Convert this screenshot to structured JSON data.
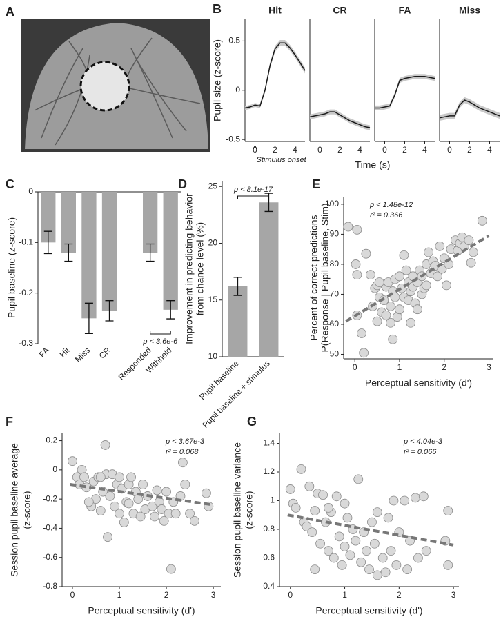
{
  "chart_data": [
    {
      "type": "image",
      "panel": "A"
    },
    {
      "type": "line",
      "panel": "B",
      "title": "Hit",
      "ylabel": "Pupil size (z-score)",
      "xlabel": "Time (s)",
      "annotation": "Stimulus onset",
      "x": [
        -1,
        -0.5,
        0,
        0.5,
        1,
        1.5,
        2,
        2.5,
        3,
        3.5,
        4,
        4.5,
        5
      ],
      "series": [
        {
          "color": "#1a1a1a",
          "values": [
            -0.18,
            -0.17,
            -0.15,
            -0.16,
            0.0,
            0.25,
            0.42,
            0.48,
            0.48,
            0.43,
            0.36,
            0.28,
            0.2
          ],
          "errors": [
            0.02,
            0.02,
            0.02,
            0.02,
            0.025,
            0.03,
            0.03,
            0.03,
            0.03,
            0.03,
            0.03,
            0.03,
            0.03
          ]
        }
      ],
      "xlim": [
        -1,
        5
      ],
      "ylim": [
        -0.52,
        0.72
      ],
      "xticks": [
        0,
        2,
        4
      ],
      "yticks": [
        -0.5,
        0,
        0.5
      ]
    },
    {
      "type": "line",
      "title": "CR",
      "x": [
        -1,
        -0.5,
        0,
        0.5,
        1,
        1.5,
        2,
        2.5,
        3,
        3.5,
        4,
        4.5,
        5
      ],
      "series": [
        {
          "color": "#1a1a1a",
          "values": [
            -0.27,
            -0.26,
            -0.25,
            -0.24,
            -0.22,
            -0.22,
            -0.25,
            -0.28,
            -0.31,
            -0.33,
            -0.35,
            -0.37,
            -0.38
          ],
          "errors": [
            0.025,
            0.025,
            0.025,
            0.025,
            0.025,
            0.025,
            0.025,
            0.025,
            0.025,
            0.025,
            0.025,
            0.025,
            0.025
          ]
        }
      ],
      "xlim": [
        -1,
        5
      ],
      "ylim": [
        -0.52,
        0.72
      ],
      "xticks": [
        0,
        2,
        4
      ]
    },
    {
      "type": "line",
      "title": "FA",
      "x": [
        -1,
        -0.5,
        0,
        0.5,
        1,
        1.5,
        2,
        2.5,
        3,
        3.5,
        4,
        4.5,
        5
      ],
      "series": [
        {
          "color": "#1a1a1a",
          "values": [
            -0.18,
            -0.18,
            -0.17,
            -0.16,
            -0.05,
            0.1,
            0.12,
            0.13,
            0.14,
            0.14,
            0.14,
            0.13,
            0.12
          ],
          "errors": [
            0.025,
            0.025,
            0.025,
            0.025,
            0.025,
            0.025,
            0.025,
            0.025,
            0.025,
            0.025,
            0.025,
            0.025,
            0.025
          ]
        }
      ],
      "xlim": [
        -1,
        5
      ],
      "ylim": [
        -0.52,
        0.72
      ],
      "xticks": [
        0,
        2,
        4
      ]
    },
    {
      "type": "line",
      "title": "Miss",
      "x": [
        -1,
        -0.5,
        0,
        0.5,
        1,
        1.5,
        2,
        2.5,
        3,
        3.5,
        4,
        4.5,
        5
      ],
      "series": [
        {
          "color": "#1a1a1a",
          "values": [
            -0.28,
            -0.27,
            -0.26,
            -0.26,
            -0.15,
            -0.1,
            -0.12,
            -0.15,
            -0.18,
            -0.2,
            -0.22,
            -0.24,
            -0.26
          ],
          "errors": [
            0.03,
            0.03,
            0.03,
            0.03,
            0.03,
            0.03,
            0.03,
            0.03,
            0.03,
            0.03,
            0.03,
            0.03,
            0.03
          ]
        }
      ],
      "xlim": [
        -1,
        5
      ],
      "ylim": [
        -0.52,
        0.72
      ],
      "xticks": [
        0,
        2,
        4
      ]
    },
    {
      "type": "bar",
      "panel": "C",
      "ylabel": "Pupil baseline (z-score)",
      "annotation": "p < 3.6e-6",
      "categories": [
        "FA",
        "Hit",
        "Miss",
        "CR",
        null,
        "Responded",
        "Withheld"
      ],
      "values": [
        -0.1,
        -0.12,
        -0.25,
        -0.235,
        null,
        -0.12,
        -0.233
      ],
      "errors": [
        0.022,
        0.017,
        0.03,
        0.02,
        null,
        0.017,
        0.018
      ],
      "color": "#a6a6a6",
      "ylim": [
        -0.3,
        0
      ],
      "yticks": [
        -0.3,
        -0.2,
        -0.1,
        0
      ]
    },
    {
      "type": "bar",
      "panel": "D",
      "ylabel": [
        "Improvement in predicting behavior",
        "from chance level (%)"
      ],
      "annotation": "p < 8.1e-17",
      "categories": [
        "Pupil baseline",
        "Pupil baseline + stimulus"
      ],
      "values": [
        16.2,
        23.6
      ],
      "errors": [
        0.8,
        0.8
      ],
      "color": "#a6a6a6",
      "ylim": [
        10,
        25.5
      ],
      "yticks": [
        10,
        15,
        20,
        25
      ]
    },
    {
      "type": "scatter",
      "panel": "E",
      "ylabel": [
        "Percent of correct predictions",
        "P(Response | Pupil baseline, Stim)"
      ],
      "xlabel": "Perceptual sensitivity (d')",
      "annotations": [
        "p < 1.48e-12",
        "r² = 0.366"
      ],
      "x": [
        -0.15,
        0.02,
        0.05,
        0.05,
        0.25,
        0.05,
        0.15,
        0.2,
        0.4,
        0.45,
        0.5,
        0.5,
        0.55,
        0.6,
        0.65,
        0.7,
        0.7,
        0.75,
        0.8,
        0.8,
        0.85,
        0.85,
        0.9,
        0.9,
        0.95,
        1.0,
        1.0,
        1.05,
        1.1,
        1.1,
        1.15,
        1.2,
        1.2,
        1.25,
        1.3,
        1.3,
        1.35,
        1.4,
        1.45,
        1.5,
        1.5,
        1.55,
        1.6,
        1.6,
        1.65,
        1.7,
        1.75,
        1.8,
        1.85,
        1.9,
        1.95,
        2.0,
        2.05,
        2.1,
        2.15,
        2.25,
        2.3,
        2.35,
        2.4,
        2.45,
        2.55,
        2.6,
        2.65,
        2.85,
        1.25,
        0.35,
        0.55,
        1.4
      ],
      "values": [
        92.5,
        80,
        76.5,
        91.5,
        83.5,
        63,
        57,
        50.5,
        66,
        72,
        73,
        61,
        69,
        64,
        68,
        72.5,
        63,
        74,
        60.5,
        66,
        55,
        71,
        75,
        69,
        62.5,
        76,
        65,
        72,
        69,
        83,
        78,
        74,
        68,
        71,
        76,
        72.5,
        67,
        74,
        78,
        70,
        76,
        72,
        80,
        73,
        84,
        77,
        81,
        79.5,
        76,
        86,
        78.5,
        82,
        73,
        80,
        85,
        88,
        84.5,
        87,
        89,
        86,
        88,
        80.5,
        84,
        94.5,
        60.5,
        76.5,
        74,
        65
      ],
      "trend": {
        "x": [
          -0.2,
          3
        ],
        "values": [
          61,
          89.5
        ]
      },
      "color": "#d9d9d9",
      "xlim": [
        -0.25,
        3.1
      ],
      "ylim": [
        48.5,
        102.5
      ],
      "xticks": [
        0,
        1,
        2,
        3
      ],
      "yticks": [
        50,
        60,
        70,
        80,
        90,
        100
      ]
    },
    {
      "type": "scatter",
      "panel": "F",
      "ylabel": [
        "Session pupil baseline average",
        "(z-score)"
      ],
      "xlabel": "Perceptual sensitivity (d')",
      "annotations": [
        "p < 3.67e-3",
        "r² = 0.068"
      ],
      "x": [
        0,
        0.1,
        0.15,
        0.2,
        0.25,
        0.3,
        0.4,
        0.45,
        0.5,
        0.55,
        0.6,
        0.65,
        0.7,
        0.72,
        0.75,
        0.8,
        0.85,
        0.9,
        0.95,
        1.0,
        1.05,
        1.1,
        1.15,
        1.2,
        1.25,
        1.3,
        1.35,
        1.4,
        1.45,
        1.5,
        1.55,
        1.6,
        1.7,
        1.75,
        1.8,
        1.85,
        1.9,
        1.95,
        2.0,
        2.05,
        2.1,
        2.15,
        2.2,
        2.3,
        2.35,
        2.4,
        2.5,
        2.6,
        2.85,
        2.9,
        1.0,
        0.6,
        1.2,
        0.35
      ],
      "values": [
        0.06,
        -0.05,
        -0.1,
        0,
        -0.05,
        -0.12,
        -0.25,
        -0.08,
        -0.2,
        -0.05,
        -0.28,
        -0.15,
        0.17,
        -0.03,
        -0.46,
        -0.18,
        -0.03,
        -0.25,
        -0.1,
        -0.3,
        -0.13,
        -0.36,
        -0.22,
        -0.1,
        -0.05,
        -0.3,
        -0.15,
        -0.2,
        -0.32,
        -0.1,
        -0.27,
        -0.18,
        -0.25,
        -0.32,
        -0.14,
        -0.22,
        -0.27,
        -0.35,
        -0.15,
        -0.3,
        -0.68,
        -0.22,
        -0.3,
        -0.18,
        0.05,
        -0.1,
        -0.3,
        -0.35,
        -0.16,
        -0.25,
        -0.05,
        -0.05,
        -0.23,
        -0.22
      ],
      "trend": {
        "x": [
          -0.05,
          3
        ],
        "values": [
          -0.1,
          -0.24
        ]
      },
      "color": "#d9d9d9",
      "xlim": [
        -0.22,
        3.16
      ],
      "ylim": [
        -0.8,
        0.25
      ],
      "xticks": [
        0,
        1,
        2,
        3
      ],
      "yticks": [
        -0.8,
        -0.6,
        -0.4,
        -0.2,
        0,
        0.2
      ]
    },
    {
      "type": "scatter",
      "panel": "G",
      "ylabel": [
        "Session pupil baseline variance",
        "(z-score)"
      ],
      "xlabel": "Perceptual sensitivity (d')",
      "annotations": [
        "p < 4.04e-3",
        "r² = 0.066"
      ],
      "x": [
        0,
        0.05,
        0.1,
        0.2,
        0.25,
        0.3,
        0.35,
        0.4,
        0.45,
        0.5,
        0.55,
        0.6,
        0.65,
        0.7,
        0.75,
        0.8,
        0.85,
        0.9,
        0.95,
        1.0,
        1.05,
        1.1,
        1.15,
        1.2,
        1.25,
        1.3,
        1.35,
        1.4,
        1.45,
        1.5,
        1.55,
        1.6,
        1.7,
        1.75,
        1.8,
        1.85,
        1.9,
        1.95,
        2.0,
        2.1,
        2.15,
        2.2,
        2.3,
        2.35,
        2.45,
        2.5,
        2.9,
        2.9,
        2.85,
        0.45,
        1.0,
        1.6,
        0.7
      ],
      "values": [
        1.08,
        0.98,
        0.95,
        1.22,
        0.85,
        0.82,
        1.1,
        0.78,
        0.93,
        1.05,
        0.7,
        1.04,
        0.85,
        0.65,
        0.92,
        0.6,
        1.03,
        0.75,
        0.55,
        0.68,
        0.88,
        0.62,
        0.8,
        0.72,
        1.15,
        0.57,
        0.78,
        0.65,
        0.52,
        0.85,
        0.7,
        0.92,
        0.6,
        0.5,
        0.88,
        0.65,
        1.0,
        0.55,
        0.78,
        1.0,
        0.52,
        0.72,
        1.02,
        0.6,
        1.03,
        0.65,
        0.93,
        0.55,
        0.72,
        0.52,
        0.98,
        0.48,
        0.95
      ],
      "trend": {
        "x": [
          -0.05,
          3
        ],
        "values": [
          0.9,
          0.69
        ]
      },
      "color": "#d9d9d9",
      "xlim": [
        -0.2,
        3.1
      ],
      "ylim": [
        0.4,
        1.47
      ],
      "xticks": [
        0,
        1,
        2,
        3
      ],
      "yticks": [
        0.4,
        0.6,
        0.8,
        1,
        1.2,
        1.4
      ]
    }
  ]
}
